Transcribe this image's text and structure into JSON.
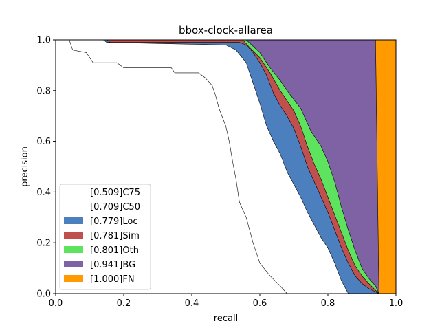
{
  "chart_data": {
    "type": "area",
    "title": "bbox-clock-allarea",
    "xlabel": "recall",
    "ylabel": "precision",
    "xlim": [
      0,
      1
    ],
    "ylim": [
      0,
      1
    ],
    "xticks": [
      "0.0",
      "0.2",
      "0.4",
      "0.6",
      "0.8",
      "1.0"
    ],
    "yticks": [
      "0.0",
      "0.2",
      "0.4",
      "0.6",
      "0.8",
      "1.0"
    ],
    "grid": false,
    "legend_placement": "lower-left",
    "series": [
      {
        "name": "[0.509]C75",
        "color": "#ffffff",
        "points": [
          [
            0,
            1
          ],
          [
            0.04,
            1
          ],
          [
            0.05,
            0.96
          ],
          [
            0.09,
            0.95
          ],
          [
            0.1,
            0.93
          ],
          [
            0.11,
            0.91
          ],
          [
            0.18,
            0.91
          ],
          [
            0.2,
            0.89
          ],
          [
            0.34,
            0.89
          ],
          [
            0.35,
            0.87
          ],
          [
            0.42,
            0.87
          ],
          [
            0.44,
            0.85
          ],
          [
            0.46,
            0.82
          ],
          [
            0.47,
            0.78
          ],
          [
            0.48,
            0.73
          ],
          [
            0.5,
            0.66
          ],
          [
            0.51,
            0.6
          ],
          [
            0.52,
            0.52
          ],
          [
            0.53,
            0.45
          ],
          [
            0.54,
            0.36
          ],
          [
            0.56,
            0.3
          ],
          [
            0.58,
            0.2
          ],
          [
            0.6,
            0.12
          ],
          [
            0.63,
            0.07
          ],
          [
            0.66,
            0.03
          ],
          [
            0.68,
            0.0
          ]
        ]
      },
      {
        "name": "[0.709]C50",
        "color": "#ffffff",
        "points": [
          [
            0,
            1
          ],
          [
            0.14,
            1
          ],
          [
            0.15,
            0.99
          ],
          [
            0.5,
            0.98
          ],
          [
            0.53,
            0.96
          ],
          [
            0.56,
            0.91
          ],
          [
            0.58,
            0.83
          ],
          [
            0.6,
            0.75
          ],
          [
            0.62,
            0.66
          ],
          [
            0.64,
            0.6
          ],
          [
            0.66,
            0.55
          ],
          [
            0.68,
            0.48
          ],
          [
            0.7,
            0.43
          ],
          [
            0.72,
            0.38
          ],
          [
            0.74,
            0.32
          ],
          [
            0.76,
            0.27
          ],
          [
            0.78,
            0.22
          ],
          [
            0.8,
            0.18
          ],
          [
            0.82,
            0.12
          ],
          [
            0.84,
            0.05
          ],
          [
            0.86,
            0.0
          ]
        ]
      },
      {
        "name": "[0.779]Loc",
        "color": "#4c7fbd",
        "points": [
          [
            0,
            1
          ],
          [
            0.15,
            1
          ],
          [
            0.16,
            0.99
          ],
          [
            0.54,
            0.99
          ],
          [
            0.56,
            0.98
          ],
          [
            0.58,
            0.95
          ],
          [
            0.6,
            0.91
          ],
          [
            0.62,
            0.86
          ],
          [
            0.64,
            0.79
          ],
          [
            0.66,
            0.74
          ],
          [
            0.68,
            0.7
          ],
          [
            0.7,
            0.65
          ],
          [
            0.72,
            0.58
          ],
          [
            0.74,
            0.5
          ],
          [
            0.76,
            0.44
          ],
          [
            0.78,
            0.38
          ],
          [
            0.8,
            0.32
          ],
          [
            0.82,
            0.25
          ],
          [
            0.84,
            0.18
          ],
          [
            0.86,
            0.12
          ],
          [
            0.88,
            0.07
          ],
          [
            0.9,
            0.04
          ],
          [
            0.92,
            0.02
          ],
          [
            0.95,
            0.0
          ]
        ]
      },
      {
        "name": "[0.781]Sim",
        "color": "#c0504d",
        "points": [
          [
            0,
            1
          ],
          [
            0.55,
            1
          ],
          [
            0.57,
            0.97
          ],
          [
            0.6,
            0.93
          ],
          [
            0.63,
            0.87
          ],
          [
            0.66,
            0.8
          ],
          [
            0.68,
            0.76
          ],
          [
            0.7,
            0.72
          ],
          [
            0.72,
            0.66
          ],
          [
            0.74,
            0.58
          ],
          [
            0.76,
            0.51
          ],
          [
            0.78,
            0.45
          ],
          [
            0.8,
            0.38
          ],
          [
            0.82,
            0.31
          ],
          [
            0.84,
            0.24
          ],
          [
            0.86,
            0.17
          ],
          [
            0.88,
            0.11
          ],
          [
            0.9,
            0.07
          ],
          [
            0.92,
            0.04
          ],
          [
            0.95,
            0.0
          ]
        ]
      },
      {
        "name": "[0.801]Oth",
        "color": "#5ee35e",
        "points": [
          [
            0,
            1
          ],
          [
            0.56,
            1
          ],
          [
            0.6,
            0.95
          ],
          [
            0.63,
            0.89
          ],
          [
            0.66,
            0.84
          ],
          [
            0.68,
            0.8
          ],
          [
            0.72,
            0.73
          ],
          [
            0.75,
            0.64
          ],
          [
            0.78,
            0.58
          ],
          [
            0.8,
            0.52
          ],
          [
            0.82,
            0.44
          ],
          [
            0.84,
            0.34
          ],
          [
            0.86,
            0.25
          ],
          [
            0.88,
            0.17
          ],
          [
            0.9,
            0.1
          ],
          [
            0.92,
            0.06
          ],
          [
            0.94,
            0.03
          ],
          [
            0.95,
            0.0
          ]
        ]
      },
      {
        "name": "[0.941]BG",
        "color": "#7f62a4",
        "points": [
          [
            0,
            1
          ],
          [
            0.94,
            1
          ],
          [
            0.95,
            0.0
          ]
        ]
      },
      {
        "name": "[1.000]FN",
        "color": "#ff9a00",
        "points": [
          [
            0,
            1
          ],
          [
            1.0,
            1
          ],
          [
            1.0,
            0.0
          ]
        ]
      }
    ]
  }
}
